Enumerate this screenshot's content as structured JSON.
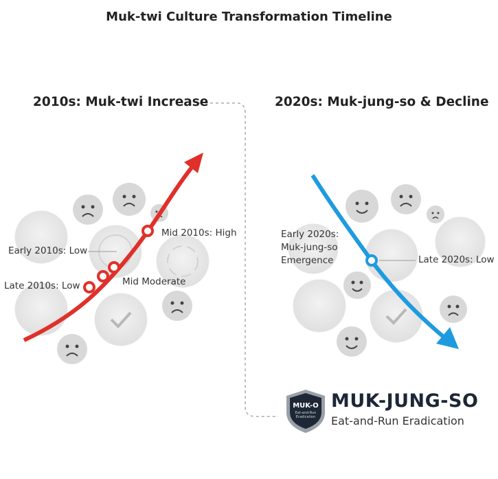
{
  "title": "Muk-twi Culture Transformation Timeline",
  "left_panel": {
    "heading": "2010s: Muk-twi Increase",
    "labels": [
      "Early 2010s: Low",
      "Mid 2010s: High",
      "Late 2010s: Low",
      "Mid Moderate"
    ],
    "arrow_color": "#e0302a"
  },
  "right_panel": {
    "heading": "2020s: Muk-jung-so & Decline",
    "labels": [
      "Early 2020s:",
      "Muk-jung-so",
      "Emergence",
      "Late 2020s: Low"
    ],
    "arrow_color": "#1e9be0"
  },
  "logo": {
    "badge_text": "MUK-O",
    "badge_subtext": "Eat-and-Run Eradication",
    "title": "MUK-JUNG-SO",
    "subtitle": "Eat-and-Run Eradication",
    "color": "#1d2735"
  }
}
